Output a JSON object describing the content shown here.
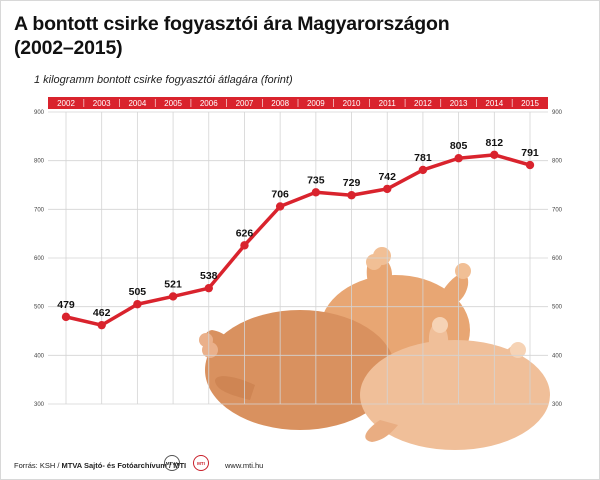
{
  "title_line1": "A bontott csirke fogyasztói ára Magyarországon",
  "title_line2": "(2002–2015)",
  "subtitle": "1 kilogramm bontott csirke fogyasztói átlagára (forint)",
  "footer": {
    "source_prefix": "Forrás: KSH / ",
    "source_bold": "MTVA Sajtó- és Fotóarchívum / MTI",
    "logo1": "MTVA",
    "logo2": "MTI",
    "website": "www.mti.hu"
  },
  "colors": {
    "accent": "#d9232d",
    "grid": "#d4d4d4",
    "chicken_dark": "#d98f5f",
    "chicken_light": "#f3c6a1"
  },
  "chart_data": {
    "type": "line",
    "categories": [
      "2002",
      "2003",
      "2004",
      "2005",
      "2006",
      "2007",
      "2008",
      "2009",
      "2010",
      "2011",
      "2012",
      "2013",
      "2014",
      "2015"
    ],
    "values": [
      479,
      462,
      505,
      521,
      538,
      626,
      706,
      735,
      729,
      742,
      781,
      805,
      812,
      791
    ],
    "value_labels": [
      "479",
      "462",
      "505",
      "521",
      "538",
      "626",
      "706",
      "735",
      "729",
      "742",
      "781",
      "805",
      "812",
      "791"
    ],
    "ylim": [
      300,
      900
    ],
    "yticks": [
      "300",
      "400",
      "500",
      "600",
      "700",
      "800",
      "900"
    ],
    "grid": true,
    "xaxis_position": "top"
  }
}
